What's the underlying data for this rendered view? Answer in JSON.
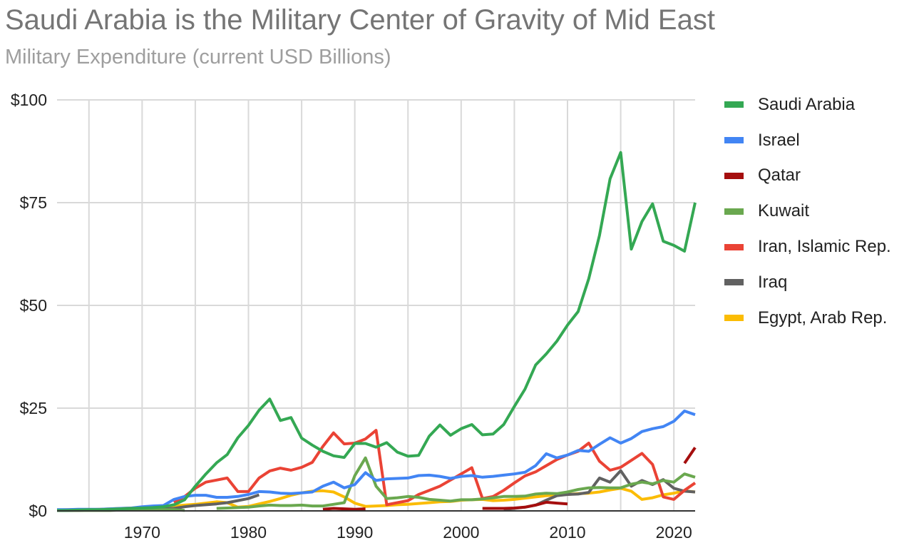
{
  "chart_data": {
    "type": "line",
    "title": "Saudi Arabia is the Military Center of Gravity of Mid East",
    "subtitle": "Military Expenditure (current USD Billions)",
    "xlabel": "",
    "ylabel": "",
    "xlim": [
      1962,
      2022
    ],
    "ylim": [
      0,
      100
    ],
    "y_ticks": [
      0,
      25,
      50,
      75,
      100
    ],
    "y_tick_labels": [
      "$0",
      "$25",
      "$50",
      "$75",
      "$100"
    ],
    "x_ticks": [
      1970,
      1980,
      1990,
      2000,
      2010,
      2020
    ],
    "x_tick_labels": [
      "1970",
      "1980",
      "1990",
      "2000",
      "2010",
      "2020"
    ],
    "grid": true,
    "legend_position": "right",
    "series": [
      {
        "name": "Saudi Arabia",
        "color": "#34a853",
        "x": [
          1962,
          1963,
          1964,
          1965,
          1966,
          1967,
          1968,
          1969,
          1970,
          1971,
          1972,
          1973,
          1974,
          1975,
          1976,
          1977,
          1978,
          1979,
          1980,
          1981,
          1982,
          1983,
          1984,
          1985,
          1986,
          1987,
          1988,
          1989,
          1990,
          1991,
          1992,
          1993,
          1994,
          1995,
          1996,
          1997,
          1998,
          1999,
          2000,
          2001,
          2002,
          2003,
          2004,
          2005,
          2006,
          2007,
          2008,
          2009,
          2010,
          2011,
          2012,
          2013,
          2014,
          2015,
          2016,
          2017,
          2018,
          2019,
          2020,
          2021,
          2022
        ],
        "values": [
          0.1,
          0.1,
          0.2,
          0.3,
          0.3,
          0.4,
          0.5,
          0.6,
          0.7,
          0.8,
          1.0,
          1.5,
          2.7,
          6.0,
          9.0,
          11.7,
          13.7,
          17.8,
          20.8,
          24.5,
          27.2,
          22.0,
          22.7,
          17.7,
          16.0,
          14.5,
          13.4,
          13.0,
          16.4,
          16.4,
          15.5,
          16.6,
          14.3,
          13.3,
          13.5,
          18.2,
          20.9,
          18.4,
          20.0,
          21.0,
          18.5,
          18.7,
          21.0,
          25.4,
          29.6,
          35.5,
          38.2,
          41.3,
          45.2,
          48.5,
          56.5,
          67.0,
          80.8,
          87.2,
          63.7,
          70.4,
          74.7,
          65.6,
          64.6,
          63.2,
          75.0
        ]
      },
      {
        "name": "Israel",
        "color": "#4285f4",
        "x": [
          1962,
          1963,
          1964,
          1965,
          1966,
          1967,
          1968,
          1969,
          1970,
          1971,
          1972,
          1973,
          1974,
          1975,
          1976,
          1977,
          1978,
          1979,
          1980,
          1981,
          1982,
          1983,
          1984,
          1985,
          1986,
          1987,
          1988,
          1989,
          1990,
          1991,
          1992,
          1993,
          1994,
          1995,
          1996,
          1997,
          1998,
          1999,
          2000,
          2001,
          2002,
          2003,
          2004,
          2005,
          2006,
          2007,
          2008,
          2009,
          2010,
          2011,
          2012,
          2013,
          2014,
          2015,
          2016,
          2017,
          2018,
          2019,
          2020,
          2021,
          2022
        ],
        "values": [
          0.3,
          0.3,
          0.4,
          0.4,
          0.4,
          0.5,
          0.6,
          0.7,
          1.0,
          1.2,
          1.3,
          2.8,
          3.5,
          3.8,
          3.8,
          3.3,
          3.3,
          3.5,
          4.0,
          4.7,
          4.6,
          4.3,
          4.2,
          4.4,
          4.6,
          6.0,
          7.0,
          5.6,
          6.4,
          9.3,
          7.4,
          7.8,
          7.9,
          8.0,
          8.6,
          8.7,
          8.4,
          7.9,
          8.4,
          8.6,
          8.2,
          8.4,
          8.7,
          9.0,
          9.4,
          11.0,
          13.9,
          12.9,
          13.6,
          14.7,
          14.5,
          16.2,
          17.8,
          16.5,
          17.6,
          19.3,
          20.0,
          20.5,
          21.8,
          24.3,
          23.4
        ]
      },
      {
        "name": "Qatar",
        "color": "#a50e0e",
        "x": [
          1987,
          1988,
          1989,
          1990,
          1991,
          null,
          2002,
          2003,
          2004,
          2005,
          2006,
          2007,
          2008,
          2009,
          2010,
          null,
          2021,
          2022
        ],
        "values": [
          0.4,
          0.6,
          0.5,
          0.4,
          0.5,
          null,
          0.6,
          0.6,
          0.6,
          0.7,
          0.9,
          1.4,
          2.1,
          1.9,
          1.7,
          null,
          11.6,
          15.4
        ]
      },
      {
        "name": "Kuwait",
        "color": "#6aa84f",
        "x": [
          1962,
          1963,
          1964,
          1965,
          1966,
          1967,
          1968,
          1969,
          1970,
          1971,
          1972,
          1973,
          1974,
          null,
          1977,
          1978,
          1979,
          1980,
          1981,
          1982,
          1983,
          1984,
          1985,
          1986,
          1987,
          1988,
          1989,
          1990,
          1991,
          1992,
          1993,
          1994,
          1995,
          1996,
          1997,
          1998,
          1999,
          2000,
          2001,
          2002,
          2003,
          2004,
          2005,
          2006,
          2007,
          2008,
          2009,
          2010,
          2011,
          2012,
          2013,
          2014,
          2015,
          2016,
          2017,
          2018,
          2019,
          2020,
          2021,
          2022
        ],
        "values": [
          0.1,
          0.1,
          0.1,
          0.1,
          0.1,
          0.1,
          0.2,
          0.2,
          0.3,
          0.3,
          0.3,
          0.3,
          0.1,
          null,
          0.6,
          0.7,
          0.8,
          0.9,
          1.2,
          1.4,
          1.3,
          1.3,
          1.4,
          1.2,
          1.2,
          1.6,
          2.0,
          8.6,
          12.9,
          6.0,
          3.0,
          3.2,
          3.5,
          3.3,
          2.8,
          2.6,
          2.4,
          2.7,
          2.7,
          2.9,
          3.2,
          3.5,
          3.5,
          3.6,
          4.1,
          4.3,
          4.2,
          4.6,
          5.2,
          5.6,
          5.7,
          5.6,
          5.6,
          6.5,
          7.0,
          6.6,
          7.4,
          7.0,
          9.0,
          8.2
        ]
      },
      {
        "name": "Iran, Islamic Rep.",
        "color": "#ea4335",
        "x": [
          1973,
          1974,
          1975,
          1976,
          1977,
          1978,
          1979,
          1980,
          1981,
          1982,
          1983,
          1984,
          1985,
          1986,
          1987,
          1988,
          1989,
          1990,
          1991,
          1992,
          1993,
          1994,
          1995,
          1996,
          1997,
          1998,
          1999,
          2000,
          2001,
          2002,
          2003,
          2004,
          2005,
          2006,
          2007,
          2008,
          2009,
          2010,
          2011,
          2012,
          2013,
          2014,
          2015,
          2016,
          2017,
          2018,
          2019,
          2020,
          2021,
          2022
        ],
        "values": [
          2.0,
          3.5,
          5.5,
          7.0,
          7.5,
          8.0,
          4.7,
          4.7,
          8.0,
          9.7,
          10.4,
          9.9,
          10.6,
          11.8,
          15.7,
          19.0,
          16.3,
          16.5,
          17.5,
          19.6,
          1.5,
          2.0,
          2.5,
          4.0,
          5.0,
          6.0,
          7.5,
          9.0,
          10.5,
          3.0,
          3.5,
          5.0,
          6.8,
          8.5,
          9.5,
          11.0,
          12.5,
          13.6,
          14.5,
          16.5,
          12.1,
          9.9,
          10.6,
          12.3,
          14.0,
          11.3,
          3.4,
          2.8,
          5.0,
          6.8
        ]
      },
      {
        "name": "Iraq",
        "color": "#616161",
        "x": [
          1962,
          1963,
          1964,
          1965,
          1966,
          1967,
          1968,
          1969,
          1970,
          1971,
          1972,
          1973,
          1974,
          1975,
          1976,
          1977,
          1978,
          1979,
          1980,
          1981,
          null,
          2004,
          2005,
          2006,
          2007,
          2008,
          2009,
          2010,
          2011,
          2012,
          2013,
          2014,
          2015,
          2016,
          2017,
          2018,
          2019,
          2020,
          2021,
          2022
        ],
        "values": [
          0.1,
          0.1,
          0.1,
          0.2,
          0.2,
          0.2,
          0.3,
          0.3,
          0.4,
          0.5,
          0.5,
          0.6,
          1.0,
          1.3,
          1.5,
          1.7,
          2.0,
          2.5,
          3.0,
          3.9,
          null,
          0.4,
          0.6,
          0.9,
          1.4,
          2.6,
          3.7,
          4.0,
          4.1,
          4.5,
          8.0,
          7.0,
          9.8,
          6.0,
          7.4,
          6.4,
          7.6,
          5.5,
          4.8,
          4.6
        ]
      },
      {
        "name": "Egypt, Arab Rep.",
        "color": "#fbbc04",
        "x": [
          1962,
          1963,
          1964,
          1965,
          1966,
          1967,
          1968,
          1969,
          1970,
          1971,
          1972,
          1973,
          1974,
          1975,
          1976,
          1977,
          1978,
          1979,
          1980,
          1981,
          1982,
          1983,
          1984,
          1985,
          1986,
          1987,
          1988,
          1989,
          1990,
          1991,
          1992,
          1993,
          1994,
          1995,
          1996,
          1997,
          1998,
          1999,
          2000,
          2001,
          2002,
          2003,
          2004,
          2005,
          2006,
          2007,
          2008,
          2009,
          2010,
          2011,
          2012,
          2013,
          2014,
          2015,
          2016,
          2017,
          2018,
          2019,
          2020,
          2021,
          2022
        ],
        "values": [
          0.2,
          0.3,
          0.3,
          0.3,
          0.4,
          0.5,
          0.6,
          0.7,
          0.8,
          0.9,
          1.0,
          1.2,
          1.4,
          1.6,
          1.9,
          2.2,
          2.0,
          0.9,
          1.1,
          1.7,
          2.3,
          3.0,
          3.8,
          4.4,
          4.8,
          4.9,
          4.6,
          3.4,
          1.9,
          1.1,
          1.2,
          1.3,
          1.5,
          1.6,
          1.8,
          2.0,
          2.2,
          2.3,
          2.6,
          2.7,
          2.8,
          2.5,
          2.6,
          2.8,
          3.1,
          3.4,
          3.7,
          3.9,
          4.0,
          4.2,
          4.3,
          4.6,
          5.1,
          5.5,
          4.8,
          2.8,
          3.2,
          3.9,
          4.3,
          4.9,
          4.6
        ]
      }
    ]
  }
}
